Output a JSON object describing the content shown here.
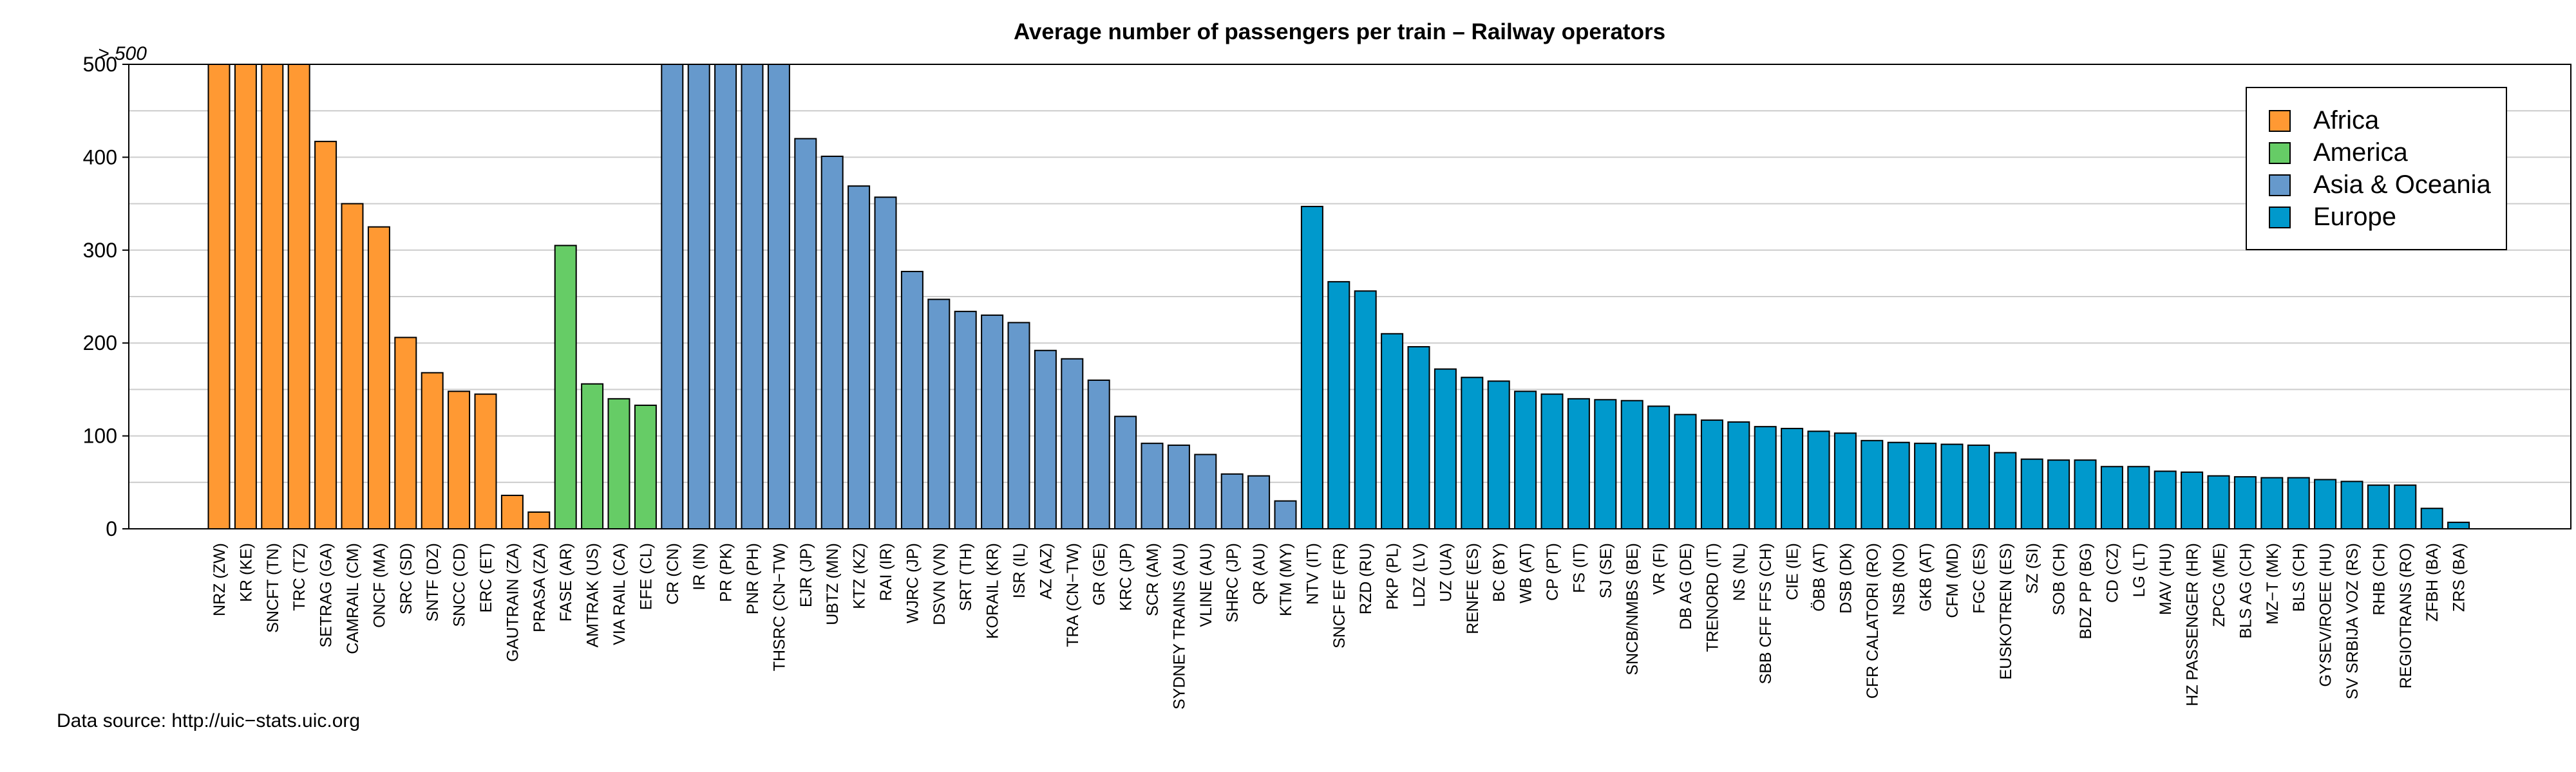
{
  "chart_data": {
    "type": "bar",
    "title": "Average number of passengers per train – Railway operators",
    "xlabel": "",
    "ylabel": "",
    "ylim": [
      0,
      500
    ],
    "y_ticks": [
      0,
      100,
      200,
      300,
      400,
      500
    ],
    "y_cap_label": "> 500",
    "grid": "horizontal",
    "legend_position": "top-right",
    "series": [
      {
        "name": "Africa",
        "color": "#FF9933",
        "categories": [
          "NRZ (ZW)",
          "KR (KE)",
          "SNCFT (TN)",
          "TRC (TZ)",
          "SETRAG (GA)",
          "CAMRAIL (CM)",
          "ONCF (MA)",
          "SRC (SD)",
          "SNTF (DZ)",
          "SNCC (CD)",
          "ERC (ET)",
          "GAUTRAIN (ZA)",
          "PRASA (ZA)"
        ],
        "values": [
          500,
          500,
          500,
          500,
          417,
          350,
          325,
          206,
          168,
          148,
          145,
          36,
          18
        ]
      },
      {
        "name": "America",
        "color": "#66CC66",
        "categories": [
          "FASE (AR)",
          "AMTRAK (US)",
          "VIA RAIL (CA)",
          "EFE (CL)"
        ],
        "values": [
          305,
          156,
          140,
          133
        ]
      },
      {
        "name": "Asia & Oceania",
        "color": "#6699CC",
        "categories": [
          "CR (CN)",
          "IR (IN)",
          "PR (PK)",
          "PNR (PH)",
          "THSRC (CN−TW)",
          "EJR (JP)",
          "UBTZ (MN)",
          "KTZ (KZ)",
          "RAI (IR)",
          "WJRC (JP)",
          "DSVN (VN)",
          "SRT (TH)",
          "KORAIL (KR)",
          "ISR (IL)",
          "AZ (AZ)",
          "TRA (CN−TW)",
          "GR (GE)",
          "KRC (JP)",
          "SCR (AM)",
          "SYDNEY TRAINS (AU)",
          "VLINE (AU)",
          "SHRC (JP)",
          "QR (AU)",
          "KTM (MY)"
        ],
        "values": [
          500,
          500,
          500,
          500,
          500,
          420,
          401,
          369,
          357,
          277,
          247,
          234,
          230,
          222,
          192,
          183,
          160,
          121,
          92,
          90,
          80,
          59,
          57,
          30
        ]
      },
      {
        "name": "Europe",
        "color": "#0099CC",
        "categories": [
          "NTV (IT)",
          "SNCF EF (FR)",
          "RZD (RU)",
          "PKP (PL)",
          "LDZ (LV)",
          "UZ (UA)",
          "RENFE (ES)",
          "BC (BY)",
          "WB (AT)",
          "CP (PT)",
          "FS (IT)",
          "SJ (SE)",
          "SNCB/NMBS (BE)",
          "VR (FI)",
          "DB AG (DE)",
          "TRENORD (IT)",
          "NS (NL)",
          "SBB CFF FFS (CH)",
          "CIE (IE)",
          "ÖBB (AT)",
          "DSB (DK)",
          "CFR CALATORI (RO)",
          "NSB (NO)",
          "GKB (AT)",
          "CFM (MD)",
          "FGC (ES)",
          "EUSKOTREN (ES)",
          "SZ (SI)",
          "SOB (CH)",
          "BDZ PP (BG)",
          "CD (CZ)",
          "LG (LT)",
          "MAV (HU)",
          "HZ PASSENGER (HR)",
          "ZPCG (ME)",
          "BLS AG (CH)",
          "MZ−T (MK)",
          "BLS (CH)",
          "GYSEV/ROEE (HU)",
          "SV SRBIJA VOZ (RS)",
          "RHB (CH)",
          "REGIOTRANS (RO)",
          "ZFBH (BA)",
          "ZRS (BA)"
        ],
        "values": [
          347,
          266,
          256,
          210,
          196,
          172,
          163,
          159,
          148,
          145,
          140,
          139,
          138,
          132,
          123,
          117,
          115,
          110,
          108,
          105,
          103,
          95,
          93,
          92,
          91,
          90,
          82,
          75,
          74,
          74,
          67,
          67,
          62,
          61,
          57,
          56,
          55,
          55,
          53,
          51,
          47,
          47,
          22,
          7
        ]
      }
    ]
  },
  "footer": {
    "source": "Data source: http://uic−stats.uic.org"
  }
}
